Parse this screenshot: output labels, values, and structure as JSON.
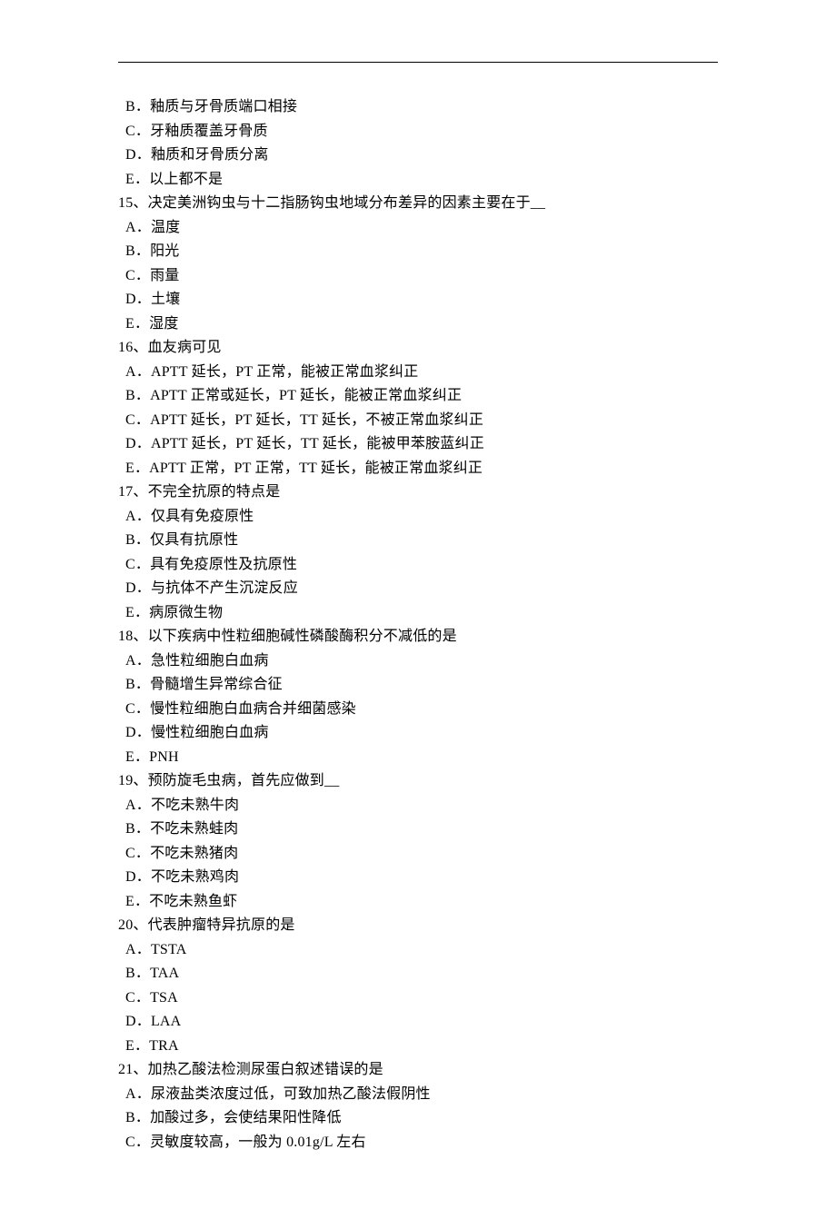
{
  "orphan_options": [
    "B．釉质与牙骨质端口相接",
    "C．牙釉质覆盖牙骨质",
    "D．釉质和牙骨质分离",
    "E．以上都不是"
  ],
  "questions": [
    {
      "stem": "15、决定美洲钩虫与十二指肠钩虫地域分布差异的因素主要在于__",
      "opts": [
        "A．温度",
        "B．阳光",
        "C．雨量",
        "D．土壤",
        "E．湿度"
      ]
    },
    {
      "stem": "16、血友病可见",
      "opts": [
        "A．APTT 延长，PT 正常，能被正常血浆纠正",
        "B．APTT 正常或延长，PT 延长，能被正常血浆纠正",
        "C．APTT 延长，PT 延长，TT 延长，不被正常血浆纠正",
        "D．APTT 延长，PT 延长，TT 延长，能被甲苯胺蓝纠正",
        "E．APTT 正常，PT 正常，TT 延长，能被正常血浆纠正"
      ]
    },
    {
      "stem": "17、不完全抗原的特点是",
      "opts": [
        "A．仅具有免疫原性",
        "B．仅具有抗原性",
        "C．具有免疫原性及抗原性",
        "D．与抗体不产生沉淀反应",
        "E．病原微生物"
      ]
    },
    {
      "stem": "18、以下疾病中性粒细胞碱性磷酸酶积分不减低的是",
      "opts": [
        "A．急性粒细胞白血病",
        "B．骨髓增生异常综合征",
        "C．慢性粒细胞白血病合并细菌感染",
        "D．慢性粒细胞白血病",
        "E．PNH"
      ]
    },
    {
      "stem": "19、预防旋毛虫病，首先应做到__",
      "opts": [
        "A．不吃未熟牛肉",
        "B．不吃未熟蛙肉",
        "C．不吃未熟猪肉",
        "D．不吃未熟鸡肉",
        "E．不吃未熟鱼虾"
      ]
    },
    {
      "stem": "20、代表肿瘤特异抗原的是",
      "opts": [
        "A．TSTA",
        "B．TAA",
        "C．TSA",
        "D．LAA",
        "E．TRA"
      ]
    },
    {
      "stem": "21、加热乙酸法检测尿蛋白叙述错误的是",
      "opts": [
        "A．尿液盐类浓度过低，可致加热乙酸法假阴性",
        "B．加酸过多，会使结果阳性降低",
        "C．灵敏度较高，一般为 0.01g/L 左右"
      ]
    }
  ]
}
